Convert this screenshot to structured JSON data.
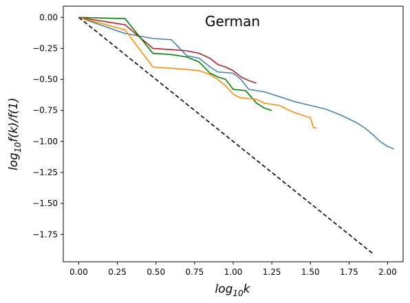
{
  "chart_data": {
    "type": "line",
    "title": "German",
    "xlabel": "log10k",
    "ylabel": "log10f(k)/f(1)",
    "xlim": [
      -0.1,
      2.1
    ],
    "ylim": [
      -1.97,
      0.09
    ],
    "xticks": [
      0.0,
      0.25,
      0.5,
      0.75,
      1.0,
      1.25,
      1.5,
      1.75,
      2.0
    ],
    "xtick_labels": [
      "0.00",
      "0.25",
      "0.50",
      "0.75",
      "1.00",
      "1.25",
      "1.50",
      "1.75",
      "2.00"
    ],
    "yticks": [
      0.0,
      -0.25,
      -0.5,
      -0.75,
      -1.0,
      -1.25,
      -1.5,
      -1.75
    ],
    "ytick_labels": [
      "0.00",
      "−0.25",
      "−0.50",
      "−0.75",
      "−1.00",
      "−1.25",
      "−1.50",
      "−1.75"
    ],
    "grid": false,
    "legend": "none",
    "series": [
      {
        "color": "#4682b4",
        "style": "solid",
        "points": [
          [
            0,
            0
          ],
          [
            0.3,
            -0.13
          ],
          [
            0.48,
            -0.17
          ],
          [
            0.6,
            -0.18
          ],
          [
            0.7,
            -0.31
          ],
          [
            0.78,
            -0.33
          ],
          [
            0.85,
            -0.4
          ],
          [
            0.9,
            -0.44
          ],
          [
            1.0,
            -0.45
          ],
          [
            1.05,
            -0.5
          ],
          [
            1.1,
            -0.58
          ],
          [
            1.2,
            -0.6
          ],
          [
            1.3,
            -0.64
          ],
          [
            1.4,
            -0.68
          ],
          [
            1.5,
            -0.71
          ],
          [
            1.6,
            -0.74
          ],
          [
            1.7,
            -0.79
          ],
          [
            1.8,
            -0.85
          ],
          [
            1.85,
            -0.89
          ],
          [
            1.9,
            -0.94
          ],
          [
            1.95,
            -1.0
          ],
          [
            2.0,
            -1.04
          ],
          [
            2.04,
            -1.06
          ]
        ]
      },
      {
        "color": "#b22222",
        "style": "solid",
        "points": [
          [
            0,
            0
          ],
          [
            0.3,
            -0.06
          ],
          [
            0.48,
            -0.25
          ],
          [
            0.6,
            -0.26
          ],
          [
            0.7,
            -0.27
          ],
          [
            0.78,
            -0.29
          ],
          [
            0.85,
            -0.33
          ],
          [
            0.9,
            -0.38
          ],
          [
            0.95,
            -0.4
          ],
          [
            1.0,
            -0.43
          ],
          [
            1.05,
            -0.48
          ],
          [
            1.1,
            -0.51
          ],
          [
            1.15,
            -0.53
          ]
        ]
      },
      {
        "color": "#008000",
        "style": "solid",
        "points": [
          [
            0,
            0
          ],
          [
            0.3,
            -0.01
          ],
          [
            0.48,
            -0.29
          ],
          [
            0.6,
            -0.3
          ],
          [
            0.7,
            -0.32
          ],
          [
            0.78,
            -0.36
          ],
          [
            0.85,
            -0.45
          ],
          [
            0.9,
            -0.48
          ],
          [
            0.95,
            -0.5
          ],
          [
            1.0,
            -0.58
          ],
          [
            1.08,
            -0.59
          ],
          [
            1.15,
            -0.69
          ],
          [
            1.2,
            -0.73
          ],
          [
            1.25,
            -0.75
          ]
        ]
      },
      {
        "color": "#ff8c00",
        "style": "solid",
        "points": [
          [
            0,
            0
          ],
          [
            0.3,
            -0.1
          ],
          [
            0.48,
            -0.4
          ],
          [
            0.6,
            -0.41
          ],
          [
            0.7,
            -0.42
          ],
          [
            0.78,
            -0.43
          ],
          [
            0.85,
            -0.46
          ],
          [
            0.9,
            -0.5
          ],
          [
            0.95,
            -0.55
          ],
          [
            1.0,
            -0.62
          ],
          [
            1.05,
            -0.65
          ],
          [
            1.15,
            -0.66
          ],
          [
            1.2,
            -0.69
          ],
          [
            1.3,
            -0.71
          ],
          [
            1.38,
            -0.76
          ],
          [
            1.45,
            -0.79
          ],
          [
            1.5,
            -0.81
          ],
          [
            1.52,
            -0.89
          ],
          [
            1.54,
            -0.89
          ]
        ]
      },
      {
        "color": "#000000",
        "style": "dashed",
        "points": [
          [
            0,
            0
          ],
          [
            1.9,
            -1.9
          ]
        ]
      }
    ]
  }
}
